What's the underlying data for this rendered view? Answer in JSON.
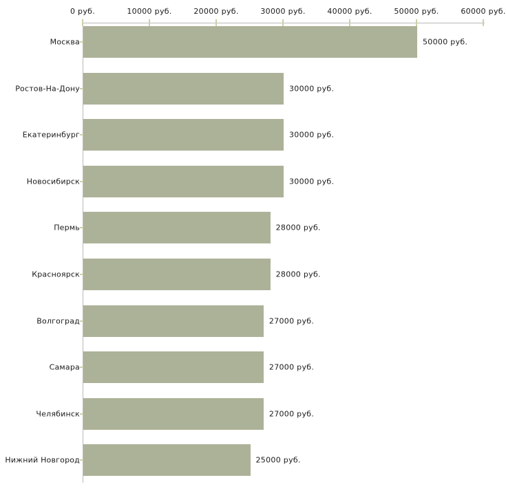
{
  "chart_data": {
    "type": "bar",
    "orientation": "horizontal",
    "title": "",
    "xlabel": "",
    "ylabel": "",
    "unit": "руб.",
    "categories": [
      "Москва",
      "Ростов-На-Дону",
      "Екатеринбург",
      "Новосибирск",
      "Пермь",
      "Красноярск",
      "Волгоград",
      "Самара",
      "Челябинск",
      "Нижний Новгород"
    ],
    "values": [
      50000,
      30000,
      30000,
      30000,
      28000,
      28000,
      27000,
      27000,
      27000,
      25000
    ],
    "value_labels": [
      "50000 руб.",
      "30000 руб.",
      "30000 руб.",
      "30000 руб.",
      "28000 руб.",
      "28000 руб.",
      "27000 руб.",
      "27000 руб.",
      "27000 руб.",
      "25000 руб."
    ],
    "x_ticks": [
      0,
      10000,
      20000,
      30000,
      40000,
      50000,
      60000
    ],
    "x_tick_labels": [
      "0 руб.",
      "10000 руб.",
      "20000 руб.",
      "30000 руб.",
      "40000 руб.",
      "50000 руб.",
      "60000 руб."
    ],
    "xlim": [
      0,
      60000
    ],
    "grid": false,
    "legend": null,
    "axis_position": "top",
    "colors": {
      "bar": "#acb298",
      "axis": "#b9b9b9",
      "tick_mark": "#ccd0a8",
      "text": "#1a1a1a",
      "background": "#ffffff"
    }
  }
}
